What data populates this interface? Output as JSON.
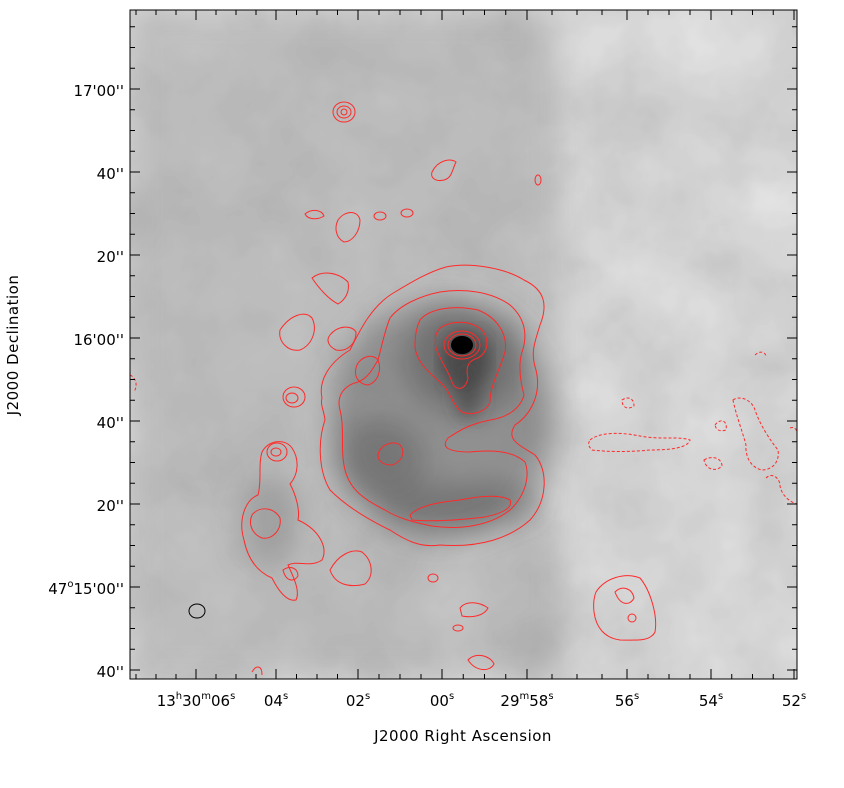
{
  "figure": {
    "xlabel": "J2000 Right Ascension",
    "ylabel": "J2000 Declination",
    "x_ticks": [
      {
        "h": "13",
        "m": "30",
        "s": "06"
      },
      {
        "s": "04"
      },
      {
        "s": "02"
      },
      {
        "s": "00"
      },
      {
        "m": "29",
        "s": "58"
      },
      {
        "s": "56"
      },
      {
        "s": "54"
      },
      {
        "s": "52"
      }
    ],
    "y_ticks": [
      {
        "label": "17'00''"
      },
      {
        "label": "40''"
      },
      {
        "label": "20''"
      },
      {
        "label": "16'00''"
      },
      {
        "label": "40''"
      },
      {
        "label": "20''"
      },
      {
        "deg": "47",
        "label": "15'00''"
      },
      {
        "label": "40''"
      }
    ],
    "colors": {
      "background_gray": "#a9a9a9",
      "contour": "#ff2a2a",
      "frame": "#000000",
      "core": "#000000"
    },
    "icons": {
      "beam": "beam-ellipse-icon"
    }
  }
}
